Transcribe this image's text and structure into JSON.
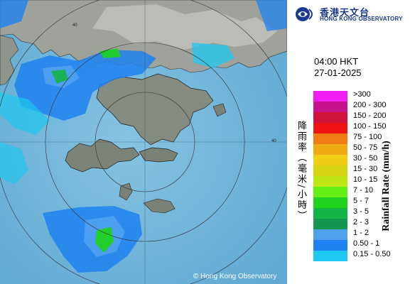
{
  "header": {
    "org_name_cn": "香港天文台",
    "org_name_en": "HONG KONG OBSERVATORY"
  },
  "timestamp": {
    "time": "04:00 HKT",
    "date": "27-01-2025"
  },
  "legend": {
    "title_en": "Rainfall Rate (mm/h)",
    "title_cn": "降雨率（毫米/小時）",
    "items": [
      {
        "label": ">300",
        "color": "#f01ef0"
      },
      {
        "label": "200 - 300",
        "color": "#c8148c"
      },
      {
        "label": "150 - 200",
        "color": "#d2143c"
      },
      {
        "label": "100 - 150",
        "color": "#f01414"
      },
      {
        "label": "75 - 100",
        "color": "#f07d14"
      },
      {
        "label": "50 - 75",
        "color": "#f0aa14"
      },
      {
        "label": "30 - 50",
        "color": "#f0cd14"
      },
      {
        "label": "15 - 30",
        "color": "#d7d214"
      },
      {
        "label": "10 - 15",
        "color": "#bee614"
      },
      {
        "label": "7 - 10",
        "color": "#64f014"
      },
      {
        "label": "5 - 7",
        "color": "#1ed21e"
      },
      {
        "label": "3 - 5",
        "color": "#14b446"
      },
      {
        "label": "2 - 3",
        "color": "#149650"
      },
      {
        "label": "1 - 2",
        "color": "#50a0f0"
      },
      {
        "label": "0.50 - 1",
        "color": "#1e82f0"
      },
      {
        "label": "0.15 - 0.50",
        "color": "#1ec8f0"
      }
    ]
  },
  "map": {
    "copyright": "© Hong Kong Observatory",
    "range_ring_label": "40"
  }
}
